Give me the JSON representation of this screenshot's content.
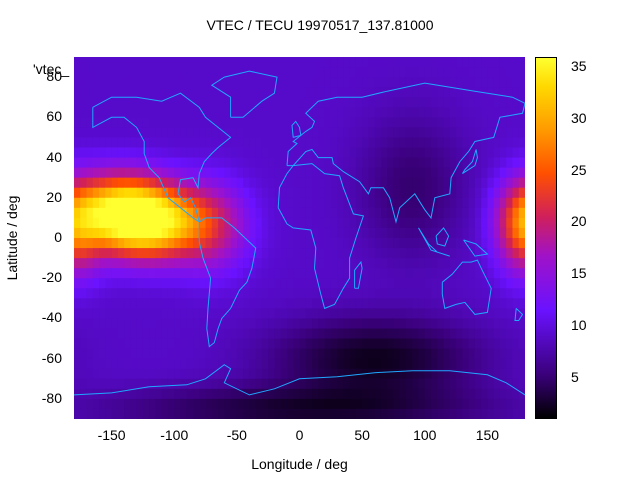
{
  "chart_data": {
    "type": "heatmap",
    "title": "VTEC / TECU 19970517_137.81000",
    "xlabel": "Longitude / deg",
    "ylabel": "Latitude / deg",
    "legend_label": "'vtec_",
    "xlim": [
      -180,
      180
    ],
    "ylim": [
      -90,
      90
    ],
    "x_ticks": [
      "-150",
      "-100",
      "-50",
      "0",
      "50",
      "100",
      "150"
    ],
    "y_ticks": [
      "-80",
      "-60",
      "-40",
      "-20",
      "0",
      "20",
      "40",
      "60",
      "80"
    ],
    "colorbar": {
      "range": [
        1,
        36
      ],
      "ticks": [
        "5",
        "10",
        "15",
        "20",
        "25",
        "30",
        "35"
      ],
      "colormap": [
        "#000000",
        "#3a007a",
        "#6a12ff",
        "#a012c8",
        "#d0205a",
        "#ff5000",
        "#ff9a00",
        "#ffd800",
        "#ffff30"
      ]
    },
    "background_value": 8,
    "features": [
      {
        "lon": -120,
        "lat": 8,
        "value": 35,
        "sigma_lon": 30,
        "sigma_lat": 12
      },
      {
        "lon": -145,
        "lat": 15,
        "value": 24,
        "sigma_lon": 25,
        "sigma_lat": 12
      },
      {
        "lon": -70,
        "lat": 5,
        "value": 15,
        "sigma_lon": 20,
        "sigma_lat": 15
      },
      {
        "lon": 180,
        "lat": 5,
        "value": 22,
        "sigma_lon": 15,
        "sigma_lat": 15
      },
      {
        "lon": 60,
        "lat": -60,
        "value": 2,
        "sigma_lon": 55,
        "sigma_lat": 14
      },
      {
        "lon": 90,
        "lat": 25,
        "value": 5,
        "sigma_lon": 30,
        "sigma_lat": 25
      },
      {
        "lon": 0,
        "lat": -85,
        "value": 3,
        "sigma_lon": 100,
        "sigma_lat": 8
      }
    ],
    "coastlines": [
      {
        "name": "north-america",
        "points": [
          [
            -165,
            65
          ],
          [
            -150,
            70
          ],
          [
            -130,
            70
          ],
          [
            -110,
            68
          ],
          [
            -95,
            72
          ],
          [
            -80,
            65
          ],
          [
            -75,
            60
          ],
          [
            -65,
            55
          ],
          [
            -55,
            50
          ],
          [
            -65,
            45
          ],
          [
            -70,
            42
          ],
          [
            -76,
            38
          ],
          [
            -80,
            32
          ],
          [
            -81,
            25
          ],
          [
            -85,
            30
          ],
          [
            -95,
            29
          ],
          [
            -97,
            22
          ],
          [
            -92,
            18
          ],
          [
            -87,
            20
          ],
          [
            -83,
            15
          ],
          [
            -80,
            8
          ],
          [
            -85,
            10
          ],
          [
            -95,
            15
          ],
          [
            -105,
            20
          ],
          [
            -112,
            30
          ],
          [
            -120,
            35
          ],
          [
            -124,
            42
          ],
          [
            -124,
            48
          ],
          [
            -130,
            55
          ],
          [
            -140,
            60
          ],
          [
            -150,
            60
          ],
          [
            -165,
            55
          ],
          [
            -165,
            65
          ]
        ]
      },
      {
        "name": "south-america",
        "points": [
          [
            -80,
            8
          ],
          [
            -75,
            10
          ],
          [
            -62,
            10
          ],
          [
            -52,
            5
          ],
          [
            -35,
            -5
          ],
          [
            -38,
            -15
          ],
          [
            -42,
            -22
          ],
          [
            -48,
            -26
          ],
          [
            -55,
            -35
          ],
          [
            -62,
            -40
          ],
          [
            -65,
            -45
          ],
          [
            -68,
            -52
          ],
          [
            -72,
            -54
          ],
          [
            -74,
            -45
          ],
          [
            -73,
            -35
          ],
          [
            -71,
            -20
          ],
          [
            -77,
            -10
          ],
          [
            -80,
            -2
          ],
          [
            -80,
            8
          ]
        ]
      },
      {
        "name": "greenland",
        "points": [
          [
            -55,
            60
          ],
          [
            -45,
            60
          ],
          [
            -30,
            68
          ],
          [
            -20,
            72
          ],
          [
            -18,
            80
          ],
          [
            -40,
            83
          ],
          [
            -60,
            80
          ],
          [
            -70,
            76
          ],
          [
            -55,
            70
          ],
          [
            -55,
            60
          ]
        ]
      },
      {
        "name": "africa",
        "points": [
          [
            -17,
            15
          ],
          [
            -16,
            25
          ],
          [
            -10,
            32
          ],
          [
            -5,
            36
          ],
          [
            10,
            37
          ],
          [
            20,
            32
          ],
          [
            32,
            31
          ],
          [
            35,
            25
          ],
          [
            43,
            12
          ],
          [
            51,
            11
          ],
          [
            45,
            0
          ],
          [
            40,
            -10
          ],
          [
            40,
            -20
          ],
          [
            35,
            -25
          ],
          [
            28,
            -33
          ],
          [
            20,
            -35
          ],
          [
            17,
            -28
          ],
          [
            12,
            -15
          ],
          [
            13,
            -5
          ],
          [
            9,
            4
          ],
          [
            -5,
            5
          ],
          [
            -10,
            7
          ],
          [
            -17,
            15
          ]
        ]
      },
      {
        "name": "eurasia",
        "points": [
          [
            -10,
            36
          ],
          [
            -9,
            43
          ],
          [
            -2,
            47
          ],
          [
            -5,
            48
          ],
          [
            5,
            53
          ],
          [
            10,
            55
          ],
          [
            12,
            58
          ],
          [
            5,
            62
          ],
          [
            15,
            68
          ],
          [
            30,
            70
          ],
          [
            50,
            70
          ],
          [
            70,
            73
          ],
          [
            100,
            77
          ],
          [
            140,
            73
          ],
          [
            170,
            70
          ],
          [
            180,
            67
          ],
          [
            178,
            62
          ],
          [
            160,
            60
          ],
          [
            155,
            50
          ],
          [
            140,
            48
          ],
          [
            135,
            43
          ],
          [
            128,
            38
          ],
          [
            121,
            30
          ],
          [
            120,
            22
          ],
          [
            108,
            20
          ],
          [
            105,
            10
          ],
          [
            100,
            14
          ],
          [
            97,
            17
          ],
          [
            92,
            22
          ],
          [
            80,
            15
          ],
          [
            77,
            8
          ],
          [
            72,
            20
          ],
          [
            67,
            25
          ],
          [
            57,
            25
          ],
          [
            55,
            22
          ],
          [
            48,
            28
          ],
          [
            35,
            33
          ],
          [
            27,
            37
          ],
          [
            26,
            40
          ],
          [
            20,
            40
          ],
          [
            15,
            40
          ],
          [
            10,
            44
          ],
          [
            5,
            43
          ],
          [
            -5,
            36
          ],
          [
            -10,
            36
          ]
        ]
      },
      {
        "name": "australia",
        "points": [
          [
            114,
            -22
          ],
          [
            122,
            -18
          ],
          [
            130,
            -12
          ],
          [
            137,
            -12
          ],
          [
            142,
            -11
          ],
          [
            145,
            -15
          ],
          [
            153,
            -25
          ],
          [
            150,
            -37
          ],
          [
            140,
            -38
          ],
          [
            132,
            -32
          ],
          [
            125,
            -33
          ],
          [
            116,
            -35
          ],
          [
            114,
            -28
          ],
          [
            114,
            -22
          ]
        ]
      },
      {
        "name": "antarctica",
        "points": [
          [
            -180,
            -78
          ],
          [
            -150,
            -77
          ],
          [
            -120,
            -74
          ],
          [
            -90,
            -73
          ],
          [
            -75,
            -70
          ],
          [
            -60,
            -63
          ],
          [
            -55,
            -65
          ],
          [
            -60,
            -72
          ],
          [
            -40,
            -78
          ],
          [
            -20,
            -75
          ],
          [
            0,
            -70
          ],
          [
            30,
            -69
          ],
          [
            60,
            -67
          ],
          [
            90,
            -66
          ],
          [
            120,
            -66
          ],
          [
            150,
            -68
          ],
          [
            165,
            -72
          ],
          [
            180,
            -78
          ]
        ]
      },
      {
        "name": "britain",
        "points": [
          [
            -5,
            50
          ],
          [
            1,
            51
          ],
          [
            0,
            55
          ],
          [
            -3,
            58
          ],
          [
            -6,
            56
          ],
          [
            -5,
            50
          ]
        ]
      },
      {
        "name": "madagascar",
        "points": [
          [
            44,
            -25
          ],
          [
            47,
            -25
          ],
          [
            50,
            -15
          ],
          [
            49,
            -12
          ],
          [
            44,
            -16
          ],
          [
            44,
            -25
          ]
        ]
      },
      {
        "name": "japan",
        "points": [
          [
            130,
            32
          ],
          [
            135,
            34
          ],
          [
            140,
            36
          ],
          [
            142,
            40
          ],
          [
            141,
            44
          ],
          [
            138,
            38
          ],
          [
            132,
            34
          ],
          [
            130,
            32
          ]
        ]
      },
      {
        "name": "indonesia",
        "points": [
          [
            95,
            5
          ],
          [
            105,
            -6
          ],
          [
            115,
            -8
          ],
          [
            120,
            -9
          ],
          [
            110,
            -7
          ],
          [
            103,
            -3
          ],
          [
            95,
            5
          ]
        ]
      },
      {
        "name": "borneo",
        "points": [
          [
            109,
            1
          ],
          [
            115,
            5
          ],
          [
            119,
            1
          ],
          [
            116,
            -4
          ],
          [
            110,
            -3
          ],
          [
            109,
            1
          ]
        ]
      },
      {
        "name": "new-guinea",
        "points": [
          [
            131,
            -1
          ],
          [
            141,
            -3
          ],
          [
            150,
            -8
          ],
          [
            140,
            -9
          ],
          [
            131,
            -1
          ]
        ]
      },
      {
        "name": "new-zealand",
        "points": [
          [
            173,
            -35
          ],
          [
            178,
            -38
          ],
          [
            175,
            -41
          ],
          [
            172,
            -41
          ],
          [
            173,
            -35
          ]
        ]
      }
    ]
  }
}
